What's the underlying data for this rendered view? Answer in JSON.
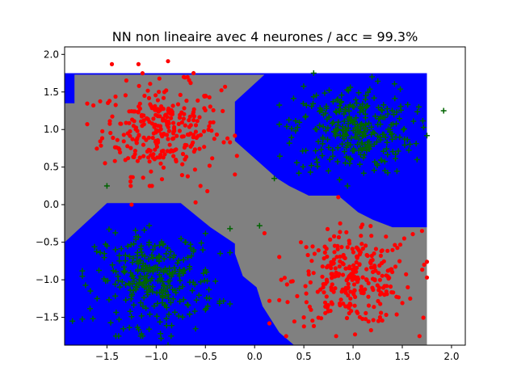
{
  "chart_data": {
    "type": "scatter",
    "title": "NN non lineaire avec 4 neurones / acc = 99.3%",
    "xlabel": "",
    "ylabel": "",
    "xlim": [
      -1.93,
      2.14
    ],
    "ylim": [
      -1.87,
      2.1
    ],
    "x_ticks": [
      -1.5,
      -1.0,
      -0.5,
      0.0,
      0.5,
      1.0,
      1.5,
      2.0
    ],
    "x_tick_labels": [
      "−1.5",
      "−1.0",
      "−0.5",
      "0.0",
      "0.5",
      "1.0",
      "1.5",
      "2.0"
    ],
    "y_ticks": [
      -1.5,
      -1.0,
      -0.5,
      0.0,
      0.5,
      1.0,
      1.5,
      2.0
    ],
    "y_tick_labels": [
      "−1.5",
      "−1.0",
      "−0.5",
      "0.0",
      "0.5",
      "1.0",
      "1.5",
      "2.0"
    ],
    "grid": false,
    "colors": {
      "region_blue": "#0000ff",
      "region_gray": "#808080",
      "class_red": "#ff0000",
      "class_green": "#006400",
      "background": "#ffffff"
    },
    "decision_region": {
      "grid_x": [
        -1.93,
        1.75
      ],
      "grid_y": [
        -1.87,
        1.75
      ],
      "gray_band_polygon": [
        [
          -1.93,
          1.35
        ],
        [
          -1.83,
          1.35
        ],
        [
          -1.83,
          1.73
        ],
        [
          0.1,
          1.73
        ],
        [
          -0.2,
          1.37
        ],
        [
          -0.2,
          0.85
        ],
        [
          0.23,
          0.35
        ],
        [
          0.35,
          0.25
        ],
        [
          0.55,
          0.12
        ],
        [
          0.85,
          0.12
        ],
        [
          1.05,
          -0.1
        ],
        [
          1.2,
          -0.2
        ],
        [
          1.4,
          -0.3
        ],
        [
          1.75,
          -0.3
        ],
        [
          1.75,
          -1.87
        ],
        [
          0.4,
          -1.87
        ],
        [
          0.25,
          -1.7
        ],
        [
          0.08,
          -1.35
        ],
        [
          0.02,
          -1.1
        ],
        [
          -0.12,
          -0.95
        ],
        [
          -0.2,
          -0.65
        ],
        [
          -0.2,
          -0.52
        ],
        [
          -0.45,
          -0.3
        ],
        [
          -0.75,
          0.02
        ],
        [
          -1.5,
          0.02
        ],
        [
          -1.93,
          -0.5
        ]
      ]
    },
    "series": [
      {
        "marker": "circle",
        "color": "#ff0000",
        "clusters": [
          {
            "center": [
              -0.95,
              1.0
            ],
            "spread": 0.3,
            "count": 290
          },
          {
            "center": [
              1.0,
              -1.0
            ],
            "spread": 0.3,
            "count": 290
          }
        ],
        "outliers": [
          [
            -1.45,
            1.87
          ],
          [
            -1.18,
            1.87
          ],
          [
            -0.88,
            1.91
          ],
          [
            -0.72,
            1.7
          ],
          [
            -0.62,
            1.75
          ],
          [
            -0.65,
            1.62
          ],
          [
            -0.3,
            1.57
          ],
          [
            -0.25,
            0.83
          ],
          [
            -0.18,
            0.65
          ],
          [
            -0.48,
            0.18
          ],
          [
            -0.6,
            0.03
          ],
          [
            -1.25,
            0.0
          ],
          [
            -0.55,
            0.25
          ],
          [
            0.85,
            0.1
          ],
          [
            0.15,
            -1.58
          ],
          [
            0.15,
            -1.28
          ],
          [
            0.1,
            -0.38
          ],
          [
            0.47,
            -0.5
          ],
          [
            1.7,
            -0.35
          ],
          [
            1.75,
            -0.97
          ],
          [
            1.58,
            -1.25
          ],
          [
            1.52,
            -0.45
          ],
          [
            0.27,
            -1.0
          ],
          [
            0.5,
            -1.5
          ]
        ]
      },
      {
        "marker": "plus",
        "color": "#006400",
        "clusters": [
          {
            "center": [
              1.0,
              1.0
            ],
            "spread": 0.3,
            "count": 290
          },
          {
            "center": [
              -1.0,
              -1.0
            ],
            "spread": 0.3,
            "count": 290
          }
        ],
        "outliers": [
          [
            0.6,
            1.75
          ],
          [
            1.92,
            1.25
          ],
          [
            1.75,
            0.92
          ],
          [
            -1.5,
            0.25
          ],
          [
            0.2,
            0.35
          ],
          [
            0.52,
            0.72
          ],
          [
            0.75,
            0.45
          ],
          [
            1.65,
            0.6
          ],
          [
            0.45,
            0.42
          ],
          [
            -1.85,
            -1.55
          ],
          [
            -1.6,
            -1.25
          ],
          [
            -0.6,
            -1.65
          ],
          [
            -0.5,
            -1.4
          ],
          [
            -1.15,
            -1.72
          ],
          [
            -0.95,
            -1.78
          ],
          [
            -0.35,
            -0.65
          ],
          [
            -0.88,
            -1.87
          ],
          [
            -0.25,
            -0.32
          ],
          [
            -1.5,
            -0.55
          ],
          [
            0.05,
            -0.28
          ]
        ]
      }
    ]
  }
}
